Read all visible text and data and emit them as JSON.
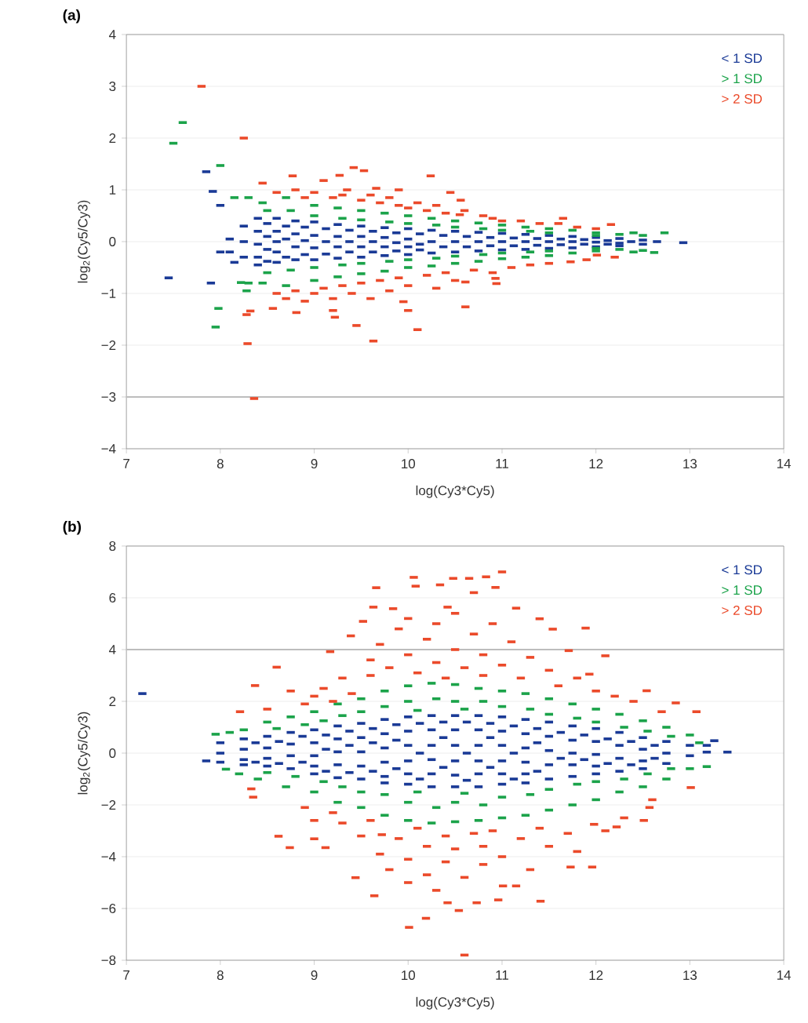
{
  "chart_data": [
    {
      "type": "scatter",
      "title": "(a)",
      "xlabel": "log(Cy3*Cy5)",
      "ylabel": "log$_{2}$(Cy5/Cy3)",
      "xlim": [
        7,
        14
      ],
      "xticks": [
        7,
        8,
        9,
        10,
        11,
        12,
        13,
        14
      ],
      "ylim": [
        -4,
        4
      ],
      "yticks": [
        {
          "value": -4,
          "label": "−4"
        },
        {
          "value": -3,
          "label": "−3"
        },
        {
          "value": -2,
          "label": "−2"
        },
        {
          "value": -1,
          "label": "−1"
        },
        0,
        1,
        2,
        3,
        4
      ],
      "grid": "y",
      "legend": "top right",
      "ref_lines": [
        {
          "axis": "y",
          "value": -3,
          "color": "#bdbdbd"
        }
      ],
      "series": [
        {
          "name": "< 1 SD",
          "color": "#1a3a96",
          "x": [
            8.1,
            8.1,
            8.25,
            8.25,
            8.25,
            8.4,
            8.4,
            8.4,
            8.4,
            8.4,
            8.6,
            8.6,
            8.6,
            8.6,
            8.6,
            8.8,
            8.8,
            8.8,
            8.8,
            9.0,
            9.0,
            9.0,
            9.0,
            9.25,
            9.25,
            9.25,
            9.25,
            9.5,
            9.5,
            9.5,
            9.5,
            9.75,
            9.75,
            9.75,
            9.75,
            10.0,
            10.0,
            10.0,
            10.0,
            10.25,
            10.25,
            10.25,
            10.5,
            10.5,
            10.5,
            10.75,
            10.75,
            10.75,
            11.0,
            11.0,
            11.0,
            11.25,
            11.25,
            11.25,
            11.5,
            11.5,
            11.5,
            11.75,
            11.75,
            11.75,
            12.0,
            12.0,
            12.0,
            12.25,
            12.25,
            12.25,
            12.5,
            12.5,
            12.65,
            7.45,
            7.9,
            7.85,
            7.92,
            8.0,
            8.0,
            8.15,
            12.93,
            8.5,
            8.5,
            8.5,
            8.5,
            8.7,
            8.7,
            8.7,
            8.9,
            8.9,
            8.9,
            9.125,
            9.125,
            9.125,
            9.375,
            9.375,
            9.375,
            9.625,
            9.625,
            9.625,
            9.875,
            9.875,
            9.875,
            10.125,
            10.125,
            10.125,
            10.375,
            10.375,
            10.625,
            10.625,
            10.875,
            10.875,
            11.125,
            11.125,
            11.375,
            11.375,
            11.625,
            11.625,
            11.875,
            11.875,
            12.125,
            12.125,
            12.375
          ],
          "values": [
            0.05,
            -0.2,
            0.3,
            0.0,
            -0.3,
            0.45,
            0.2,
            -0.05,
            -0.3,
            -0.45,
            0.45,
            0.2,
            0.0,
            -0.2,
            -0.4,
            0.4,
            0.15,
            -0.1,
            -0.35,
            0.38,
            0.12,
            -0.12,
            -0.35,
            0.33,
            0.1,
            -0.1,
            -0.32,
            0.3,
            0.1,
            -0.1,
            -0.3,
            0.27,
            0.08,
            -0.1,
            -0.27,
            0.25,
            0.05,
            -0.1,
            -0.25,
            0.22,
            0.0,
            -0.22,
            0.2,
            0.0,
            -0.2,
            0.18,
            0.0,
            -0.18,
            0.16,
            0.0,
            -0.16,
            0.14,
            0.0,
            -0.15,
            0.12,
            0.0,
            -0.13,
            0.1,
            0.0,
            -0.12,
            0.08,
            -0.01,
            -0.1,
            0.06,
            -0.03,
            -0.08,
            0.03,
            -0.05,
            0.0,
            -0.7,
            -0.8,
            1.35,
            0.97,
            0.7,
            -0.2,
            -0.4,
            -0.02,
            0.35,
            0.1,
            -0.15,
            -0.38,
            0.3,
            0.05,
            -0.3,
            0.28,
            0.02,
            -0.25,
            0.25,
            0.0,
            -0.24,
            0.22,
            0.0,
            -0.2,
            0.2,
            0.0,
            -0.2,
            0.17,
            -0.02,
            -0.18,
            0.15,
            -0.05,
            -0.16,
            0.12,
            -0.1,
            0.1,
            -0.1,
            0.08,
            -0.08,
            0.07,
            -0.08,
            0.06,
            -0.07,
            0.05,
            -0.06,
            0.04,
            -0.05,
            0.02,
            -0.05,
            0.0
          ]
        },
        {
          "name": "> 1 SD",
          "color": "#1ba34a",
          "x": [
            8.3,
            8.45,
            8.5,
            8.7,
            8.75,
            9.0,
            9.0,
            9.25,
            9.3,
            9.5,
            9.5,
            9.75,
            9.8,
            10.0,
            10.0,
            10.25,
            10.3,
            10.5,
            10.5,
            10.75,
            10.8,
            11.0,
            11.0,
            11.25,
            11.3,
            11.5,
            11.5,
            11.75,
            12.0,
            12.0,
            12.25,
            12.5,
            12.73,
            12.4,
            8.3,
            8.45,
            8.5,
            8.7,
            8.75,
            9.0,
            9.0,
            9.25,
            9.3,
            9.5,
            9.5,
            9.75,
            9.8,
            10.0,
            10.0,
            10.25,
            10.3,
            10.5,
            10.5,
            10.75,
            10.8,
            11.0,
            11.0,
            11.25,
            11.3,
            11.5,
            11.5,
            11.75,
            12.0,
            12.0,
            12.25,
            12.5,
            12.62,
            12.4,
            7.6,
            7.5,
            8.0,
            8.15,
            7.95,
            7.98,
            8.28,
            8.22
          ],
          "values": [
            0.85,
            0.75,
            0.6,
            0.85,
            0.6,
            0.7,
            0.5,
            0.65,
            0.45,
            0.6,
            0.42,
            0.55,
            0.38,
            0.5,
            0.35,
            0.45,
            0.32,
            0.4,
            0.28,
            0.36,
            0.25,
            0.32,
            0.22,
            0.28,
            0.2,
            0.25,
            0.17,
            0.22,
            0.17,
            0.12,
            0.14,
            0.12,
            0.17,
            0.17,
            -0.8,
            -0.8,
            -0.6,
            -0.85,
            -0.55,
            -0.75,
            -0.5,
            -0.68,
            -0.45,
            -0.62,
            -0.42,
            -0.57,
            -0.38,
            -0.5,
            -0.35,
            -0.47,
            -0.32,
            -0.42,
            -0.28,
            -0.38,
            -0.25,
            -0.33,
            -0.22,
            -0.3,
            -0.2,
            -0.27,
            -0.18,
            -0.22,
            -0.18,
            -0.13,
            -0.15,
            -0.17,
            -0.21,
            -0.2,
            2.3,
            1.9,
            1.47,
            0.85,
            -1.65,
            -1.29,
            -0.95,
            -0.79
          ]
        },
        {
          "name": "> 2 SD",
          "color": "#eb4a2a",
          "x": [
            7.8,
            8.25,
            8.45,
            8.77,
            9.1,
            9.27,
            9.42,
            9.53,
            9.66,
            10.24,
            10.56,
            10.55,
            11.65,
            12.16,
            8.6,
            8.8,
            8.9,
            9.0,
            9.2,
            9.3,
            9.5,
            9.6,
            9.7,
            9.8,
            9.9,
            10.0,
            10.1,
            10.2,
            10.3,
            10.4,
            10.6,
            10.8,
            10.9,
            11.0,
            11.2,
            11.4,
            11.6,
            11.8,
            12.0,
            9.35,
            9.9,
            10.45,
            8.29,
            8.36,
            8.28,
            8.32,
            8.56,
            8.81,
            9.2,
            9.22,
            9.45,
            9.63,
            10.1,
            10.61,
            10.0,
            9.95,
            10.94,
            10.93,
            10.61,
            11.73,
            12.01,
            8.6,
            8.7,
            8.8,
            8.9,
            9.0,
            9.1,
            9.2,
            9.3,
            9.4,
            9.5,
            9.6,
            9.7,
            9.8,
            9.9,
            10.0,
            10.2,
            10.3,
            10.4,
            10.5,
            10.7,
            10.9,
            11.1,
            11.3,
            11.5,
            11.9,
            12.2
          ],
          "values": [
            3.0,
            2.0,
            1.13,
            1.27,
            1.18,
            1.28,
            1.43,
            1.37,
            1.03,
            1.27,
            0.8,
            0.52,
            0.45,
            0.33,
            0.95,
            1.0,
            0.85,
            0.95,
            0.85,
            0.9,
            0.8,
            0.9,
            0.75,
            0.85,
            0.7,
            0.65,
            0.75,
            0.6,
            0.7,
            0.55,
            0.6,
            0.5,
            0.45,
            0.4,
            0.4,
            0.35,
            0.35,
            0.28,
            0.25,
            1.0,
            1.0,
            0.95,
            -1.97,
            -3.03,
            -1.41,
            -1.34,
            -1.29,
            -1.37,
            -1.33,
            -1.46,
            -1.62,
            -1.92,
            -1.7,
            -1.26,
            -1.33,
            -1.16,
            -0.81,
            -0.71,
            -0.78,
            -0.39,
            -0.26,
            -1.0,
            -1.1,
            -0.95,
            -1.15,
            -1.0,
            -0.9,
            -1.1,
            -0.85,
            -1.0,
            -0.8,
            -1.1,
            -0.75,
            -0.95,
            -0.7,
            -0.85,
            -0.65,
            -0.9,
            -0.6,
            -0.75,
            -0.55,
            -0.6,
            -0.5,
            -0.45,
            -0.42,
            -0.35,
            -0.3
          ]
        }
      ]
    },
    {
      "type": "scatter",
      "title": "(b)",
      "xlabel": "log(Cy3*Cy5)",
      "ylabel": "log$_{2}$(Cy5/Cy3)",
      "xlim": [
        7,
        14
      ],
      "xticks": [
        7,
        8,
        9,
        10,
        11,
        12,
        13,
        14
      ],
      "ylim": [
        -8,
        8
      ],
      "yticks": [
        {
          "value": -8,
          "label": "−8"
        },
        {
          "value": -6,
          "label": "−6"
        },
        {
          "value": -4,
          "label": "−4"
        },
        {
          "value": -2,
          "label": "−2"
        },
        0,
        2,
        4,
        6,
        8
      ],
      "grid": "y",
      "legend": "top right",
      "ref_lines": [
        {
          "axis": "y",
          "value": 4,
          "color": "#bdbdbd"
        }
      ],
      "series": [
        {
          "name": "< 1 SD",
          "color": "#1a3a96",
          "x": [
            7.85,
            8.0,
            8.0,
            8.0,
            8.25,
            8.25,
            8.25,
            8.25,
            8.5,
            8.5,
            8.5,
            8.5,
            8.75,
            8.75,
            8.75,
            8.75,
            9.0,
            9.0,
            9.0,
            9.0,
            9.0,
            9.25,
            9.25,
            9.25,
            9.25,
            9.25,
            9.5,
            9.5,
            9.5,
            9.5,
            9.5,
            9.75,
            9.75,
            9.75,
            9.75,
            9.75,
            9.75,
            10.0,
            10.0,
            10.0,
            10.0,
            10.0,
            10.0,
            10.25,
            10.25,
            10.25,
            10.25,
            10.25,
            10.25,
            10.5,
            10.5,
            10.5,
            10.5,
            10.5,
            10.5,
            10.75,
            10.75,
            10.75,
            10.75,
            10.75,
            10.75,
            11.0,
            11.0,
            11.0,
            11.0,
            11.0,
            11.0,
            11.25,
            11.25,
            11.25,
            11.25,
            11.25,
            11.25,
            11.5,
            11.5,
            11.5,
            11.5,
            11.5,
            11.75,
            11.75,
            11.75,
            11.75,
            11.75,
            12.0,
            12.0,
            12.0,
            12.0,
            12.0,
            12.25,
            12.25,
            12.25,
            12.25,
            12.5,
            12.5,
            12.5,
            12.5,
            12.75,
            12.75,
            12.75,
            13.0,
            13.0,
            13.18,
            13.18,
            13.26,
            13.4,
            7.17,
            8.375,
            8.375,
            8.625,
            8.625,
            8.875,
            8.875,
            9.125,
            9.125,
            9.125,
            9.375,
            9.375,
            9.375,
            9.625,
            9.625,
            9.625,
            9.875,
            9.875,
            9.875,
            10.125,
            10.125,
            10.125,
            10.375,
            10.375,
            10.375,
            10.625,
            10.625,
            10.625,
            10.875,
            10.875,
            10.875,
            11.125,
            11.125,
            11.125,
            11.375,
            11.375,
            11.375,
            11.625,
            11.625,
            11.875,
            11.875,
            12.125,
            12.125,
            12.375,
            12.375,
            12.625,
            12.625
          ],
          "values": [
            -0.3,
            0.4,
            0.0,
            -0.35,
            0.55,
            0.15,
            -0.25,
            -0.45,
            0.65,
            0.2,
            -0.2,
            -0.5,
            0.8,
            0.35,
            -0.1,
            -0.6,
            0.9,
            0.4,
            -0.1,
            -0.5,
            -0.8,
            1.05,
            0.55,
            0.05,
            -0.45,
            -0.95,
            1.15,
            0.6,
            0.05,
            -0.5,
            -1.0,
            1.3,
            0.75,
            0.2,
            -0.35,
            -0.9,
            -1.15,
            1.4,
            0.85,
            0.3,
            -0.3,
            -0.8,
            -1.2,
            1.45,
            0.9,
            0.3,
            -0.25,
            -0.8,
            -1.3,
            1.45,
            0.9,
            0.3,
            -0.3,
            -0.85,
            -1.3,
            1.45,
            0.9,
            0.3,
            -0.3,
            -0.8,
            -1.3,
            1.4,
            0.85,
            0.3,
            -0.3,
            -0.8,
            -1.2,
            1.3,
            0.75,
            0.2,
            -0.35,
            -0.8,
            -1.15,
            1.2,
            0.65,
            0.1,
            -0.45,
            -1.0,
            1.05,
            0.5,
            0.0,
            -0.45,
            -0.9,
            0.95,
            0.45,
            -0.05,
            -0.5,
            -0.8,
            0.8,
            0.3,
            -0.2,
            -0.7,
            0.6,
            0.15,
            -0.3,
            -0.6,
            0.45,
            0.0,
            -0.4,
            0.3,
            -0.1,
            0.04,
            0.3,
            0.48,
            0.04,
            2.3,
            0.4,
            -0.35,
            0.45,
            -0.4,
            0.65,
            -0.35,
            0.7,
            0.15,
            -0.7,
            0.85,
            0.3,
            -0.75,
            0.95,
            0.4,
            -0.7,
            1.1,
            0.5,
            -0.6,
            1.15,
            0.0,
            -1.0,
            1.2,
            0.6,
            -0.55,
            1.2,
            0.0,
            -1.05,
            1.15,
            0.6,
            -0.55,
            1.05,
            0.0,
            -1.0,
            0.95,
            0.4,
            -0.7,
            0.8,
            -0.2,
            0.7,
            -0.25,
            0.55,
            -0.4,
            0.45,
            -0.45,
            0.3,
            -0.2
          ]
        },
        {
          "name": "> 1 SD",
          "color": "#1ba34a",
          "x": [
            7.95,
            8.1,
            8.25,
            8.5,
            8.6,
            8.75,
            8.9,
            9.0,
            9.1,
            9.25,
            9.3,
            9.5,
            9.5,
            9.75,
            9.75,
            10.0,
            10.0,
            10.1,
            10.25,
            10.3,
            10.5,
            10.5,
            10.6,
            10.75,
            10.8,
            11.0,
            11.0,
            11.25,
            11.3,
            11.5,
            11.5,
            11.75,
            11.8,
            12.0,
            12.0,
            12.25,
            12.3,
            12.5,
            12.55,
            12.75,
            12.8,
            13.0,
            13.1,
            8.06,
            8.2,
            8.4,
            8.5,
            8.7,
            8.8,
            9.0,
            9.1,
            9.25,
            9.3,
            9.5,
            9.5,
            9.75,
            9.75,
            10.0,
            10.0,
            10.1,
            10.25,
            10.3,
            10.5,
            10.5,
            10.6,
            10.75,
            10.8,
            11.0,
            11.0,
            11.25,
            11.3,
            11.5,
            11.5,
            11.75,
            11.8,
            12.0,
            12.0,
            12.25,
            12.3,
            12.5,
            12.55,
            12.75,
            12.8,
            13.0,
            13.18
          ],
          "values": [
            0.73,
            0.8,
            0.9,
            1.2,
            0.95,
            1.4,
            1.1,
            1.6,
            1.25,
            1.9,
            1.45,
            2.1,
            1.6,
            2.4,
            1.8,
            2.6,
            2.0,
            1.65,
            2.7,
            2.1,
            2.65,
            2.0,
            1.7,
            2.5,
            2.0,
            2.4,
            1.8,
            2.3,
            1.7,
            2.1,
            1.5,
            1.9,
            1.35,
            1.7,
            1.2,
            1.5,
            1.0,
            1.25,
            0.85,
            1.0,
            0.65,
            0.7,
            0.4,
            -0.62,
            -0.8,
            -1.0,
            -0.75,
            -1.3,
            -0.9,
            -1.5,
            -1.1,
            -1.9,
            -1.3,
            -2.1,
            -1.5,
            -2.4,
            -1.6,
            -2.6,
            -1.9,
            -1.5,
            -2.7,
            -2.1,
            -2.65,
            -1.9,
            -1.55,
            -2.6,
            -2.0,
            -2.5,
            -1.7,
            -2.4,
            -1.6,
            -2.2,
            -1.4,
            -2.0,
            -1.2,
            -1.8,
            -1.1,
            -1.5,
            -1.0,
            -1.3,
            -0.8,
            -1.0,
            -0.6,
            -0.6,
            -0.52
          ]
        },
        {
          "name": "> 2 SD",
          "color": "#eb4a2a",
          "x": [
            11.0,
            10.83,
            10.65,
            10.48,
            10.06,
            10.08,
            10.34,
            9.66,
            10.93,
            10.7,
            9.63,
            9.84,
            10.42,
            11.15,
            11.4,
            11.89,
            11.54,
            9.52,
            9.39,
            9.17,
            8.6,
            8.37,
            8.21,
            11.71,
            12.1,
            11.93,
            12.54,
            12.85,
            13.07,
            9.0,
            8.9,
            9.1,
            9.3,
            9.4,
            9.6,
            9.6,
            9.7,
            9.8,
            9.9,
            10.0,
            10.0,
            10.1,
            10.2,
            10.3,
            10.3,
            10.4,
            10.5,
            10.5,
            10.6,
            10.7,
            10.8,
            10.8,
            10.9,
            11.0,
            11.1,
            11.2,
            11.3,
            11.5,
            11.6,
            11.8,
            12.0,
            12.2,
            12.4,
            12.7,
            8.75,
            9.2,
            8.5,
            10.6,
            10.01,
            10.19,
            10.42,
            10.54,
            10.73,
            10.96,
            11.41,
            9.64,
            9.44,
            11.01,
            11.15,
            11.73,
            11.96,
            9.72,
            8.62,
            8.74,
            9.12,
            9.0,
            8.35,
            8.33,
            13.01,
            12.57,
            12.51,
            12.22,
            11.98,
            9.2,
            9.3,
            9.5,
            9.6,
            9.7,
            9.8,
            9.9,
            10.0,
            10.0,
            10.1,
            10.2,
            10.2,
            10.3,
            10.4,
            10.4,
            10.5,
            10.6,
            10.7,
            10.8,
            10.8,
            10.9,
            11.0,
            11.2,
            11.3,
            11.4,
            11.5,
            11.7,
            11.8,
            12.1,
            12.3,
            12.6,
            8.9,
            9.0
          ],
          "values": [
            7.0,
            6.81,
            6.75,
            6.75,
            6.79,
            6.45,
            6.5,
            6.39,
            6.4,
            6.2,
            5.64,
            5.58,
            5.64,
            5.6,
            5.19,
            4.83,
            4.79,
            5.09,
            4.53,
            3.92,
            3.32,
            2.61,
            1.6,
            3.96,
            3.76,
            3.05,
            2.41,
            1.94,
            1.6,
            2.2,
            1.9,
            2.5,
            2.9,
            2.3,
            3.0,
            3.6,
            4.2,
            3.3,
            4.8,
            3.8,
            5.2,
            3.1,
            4.4,
            3.5,
            5.0,
            2.9,
            4.0,
            5.4,
            3.3,
            4.6,
            3.0,
            3.8,
            5.0,
            3.4,
            4.3,
            2.9,
            3.7,
            3.2,
            2.6,
            2.9,
            2.4,
            2.2,
            2.0,
            1.6,
            2.4,
            2.0,
            1.7,
            -7.8,
            -6.73,
            -6.38,
            -5.78,
            -6.08,
            -5.78,
            -5.67,
            -5.72,
            -5.51,
            -4.81,
            -5.13,
            -5.13,
            -4.4,
            -4.4,
            -3.15,
            -3.21,
            -3.65,
            -3.65,
            -3.31,
            -1.7,
            -1.38,
            -1.33,
            -2.1,
            -2.6,
            -2.85,
            -2.75,
            -2.3,
            -2.7,
            -3.2,
            -2.6,
            -3.9,
            -4.5,
            -3.3,
            -4.1,
            -5.0,
            -2.9,
            -3.6,
            -4.7,
            -5.3,
            -3.2,
            -4.2,
            -3.7,
            -4.8,
            -3.1,
            -3.6,
            -4.3,
            -3.0,
            -4.0,
            -3.3,
            -4.5,
            -2.9,
            -3.6,
            -3.1,
            -3.8,
            -3.0,
            -2.5,
            -1.8,
            -2.1,
            -2.6
          ]
        }
      ]
    }
  ]
}
